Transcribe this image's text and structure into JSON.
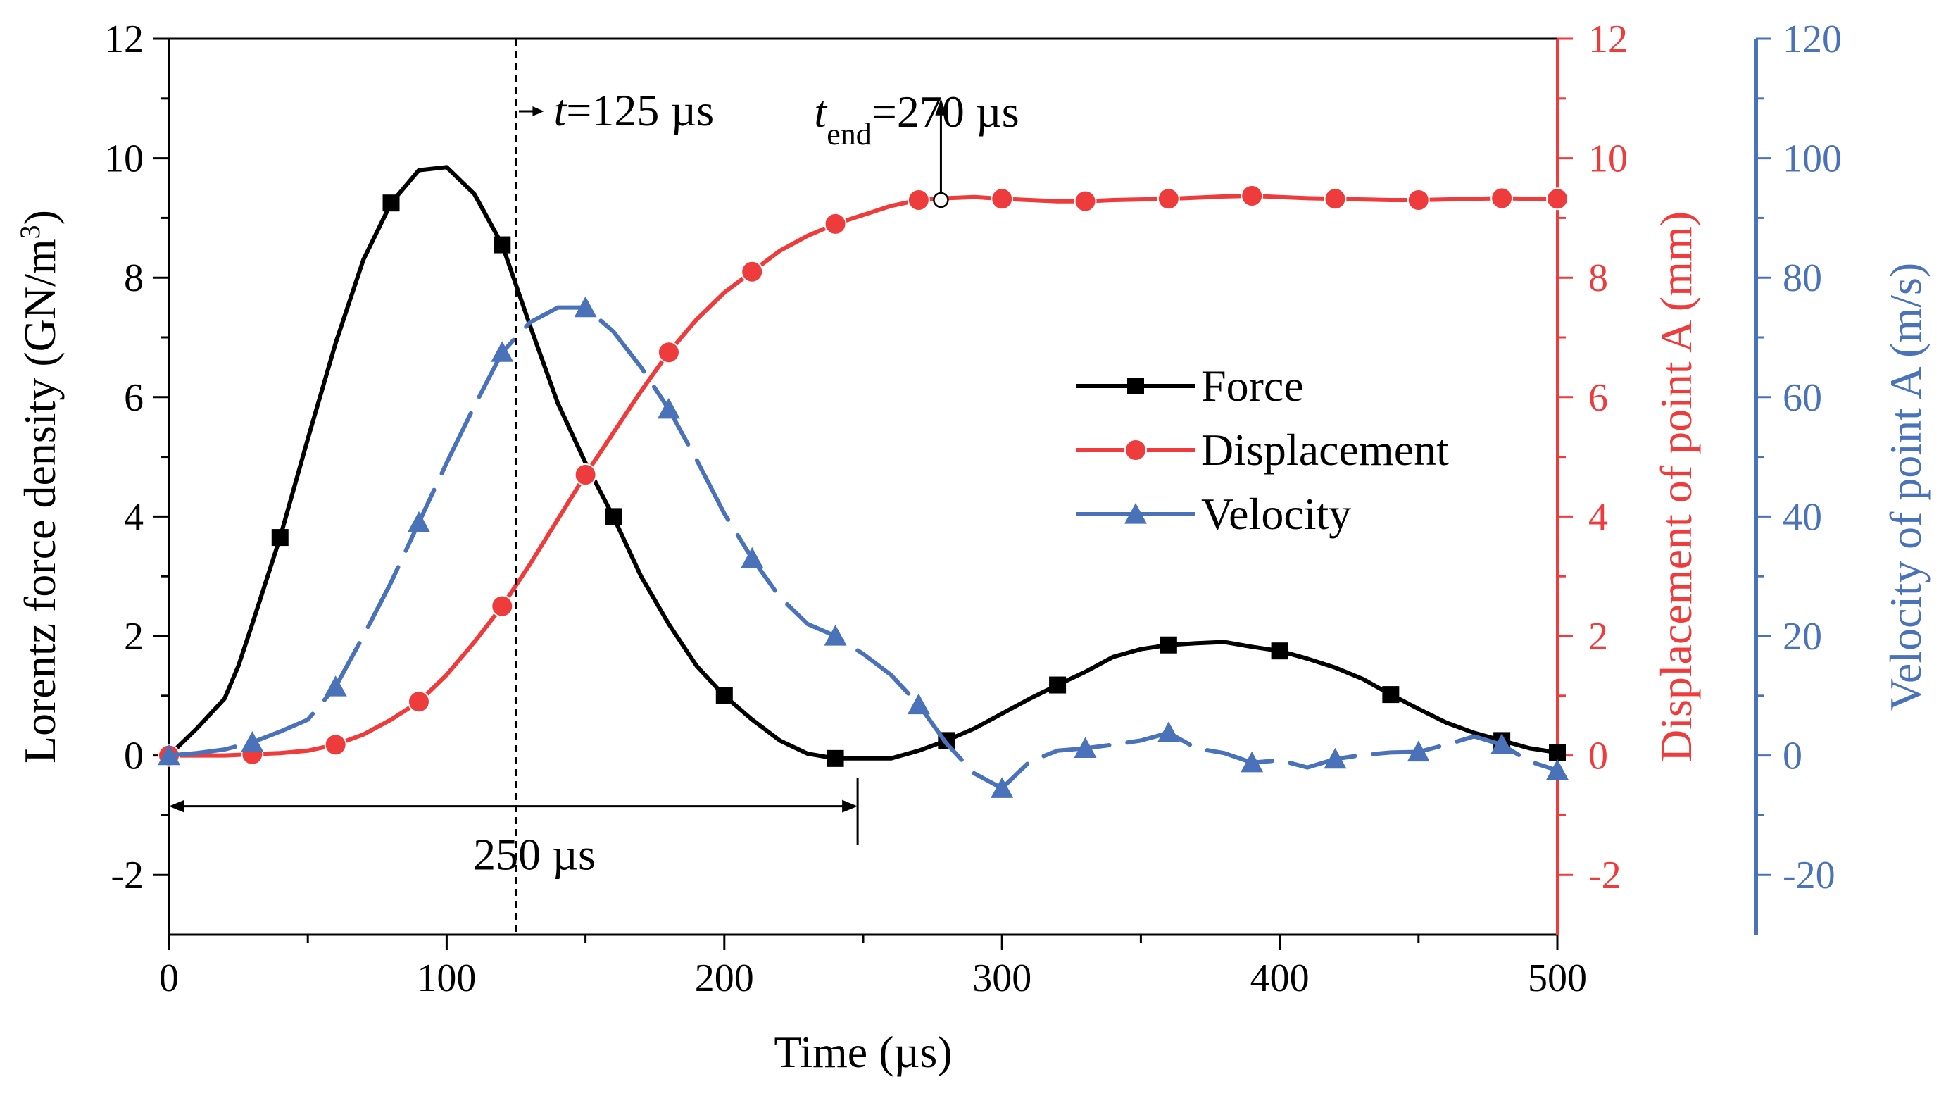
{
  "chart_data": {
    "type": "line",
    "xlabel": "Time (µs)",
    "xlim": [
      0,
      500
    ],
    "x_ticks": [
      "0",
      "100",
      "200",
      "300",
      "400",
      "500"
    ],
    "y_axes": {
      "left": {
        "label_main": "Lorentz force density (GN/m",
        "label_sup": "3",
        "label_end": ")",
        "ylim": [
          -3,
          12
        ],
        "ticks": [
          "-2",
          "0",
          "2",
          "4",
          "6",
          "8",
          "10",
          "12"
        ],
        "color": "#000000"
      },
      "right1": {
        "label": "Displacement of point A (mm)",
        "ylim": [
          -3,
          12
        ],
        "ticks": [
          "-2",
          "0",
          "2",
          "4",
          "6",
          "8",
          "10",
          "12"
        ],
        "color": "#ee3b3b"
      },
      "right2": {
        "label": "Velocity of point A (m/s)",
        "ylim": [
          -30,
          120
        ],
        "ticks": [
          "-20",
          "0",
          "20",
          "40",
          "60",
          "80",
          "100",
          "120"
        ],
        "color": "#4a72b8"
      }
    },
    "series": [
      {
        "name": "Force",
        "axis": "left",
        "color": "#000000",
        "marker": "square",
        "line": "solid",
        "x": [
          0,
          10,
          20,
          25,
          30,
          40,
          50,
          60,
          70,
          80,
          90,
          100,
          110,
          120,
          130,
          140,
          150,
          160,
          170,
          180,
          190,
          200,
          210,
          220,
          230,
          240,
          250,
          260,
          270,
          280,
          290,
          300,
          310,
          320,
          330,
          340,
          350,
          360,
          370,
          380,
          390,
          400,
          410,
          420,
          430,
          440,
          450,
          460,
          470,
          480,
          490,
          500
        ],
        "y": [
          0.0,
          0.45,
          0.95,
          1.5,
          2.2,
          3.65,
          5.3,
          6.9,
          8.3,
          9.25,
          9.8,
          9.85,
          9.4,
          8.55,
          7.2,
          5.9,
          4.9,
          4.0,
          3.0,
          2.2,
          1.5,
          1.0,
          0.6,
          0.25,
          0.03,
          -0.05,
          -0.05,
          -0.05,
          0.08,
          0.25,
          0.45,
          0.7,
          0.95,
          1.18,
          1.4,
          1.65,
          1.78,
          1.85,
          1.88,
          1.9,
          1.82,
          1.75,
          1.62,
          1.47,
          1.28,
          1.02,
          0.78,
          0.55,
          0.38,
          0.25,
          0.12,
          0.05
        ],
        "marker_x": [
          0,
          40,
          80,
          120,
          160,
          200,
          240,
          280,
          320,
          360,
          400,
          440,
          480,
          500
        ],
        "marker_y": [
          0.0,
          3.65,
          9.25,
          8.55,
          4.0,
          1.0,
          -0.05,
          0.25,
          1.18,
          1.85,
          1.75,
          1.02,
          0.25,
          0.05
        ]
      },
      {
        "name": "Displacement",
        "axis": "right1",
        "color": "#ee3b3b",
        "marker": "circle",
        "line": "solid",
        "x": [
          0,
          10,
          20,
          30,
          40,
          50,
          60,
          70,
          80,
          90,
          100,
          110,
          120,
          130,
          140,
          150,
          160,
          170,
          180,
          190,
          200,
          210,
          220,
          230,
          240,
          250,
          260,
          270,
          280,
          290,
          300,
          310,
          320,
          330,
          340,
          350,
          360,
          370,
          380,
          390,
          400,
          410,
          420,
          430,
          440,
          450,
          460,
          470,
          480,
          490,
          500
        ],
        "y": [
          0.0,
          0.0,
          0.0,
          0.02,
          0.04,
          0.08,
          0.18,
          0.35,
          0.6,
          0.9,
          1.35,
          1.9,
          2.5,
          3.2,
          3.95,
          4.7,
          5.4,
          6.1,
          6.75,
          7.3,
          7.75,
          8.1,
          8.45,
          8.7,
          8.9,
          9.05,
          9.2,
          9.3,
          9.33,
          9.35,
          9.32,
          9.3,
          9.28,
          9.28,
          9.3,
          9.31,
          9.32,
          9.34,
          9.36,
          9.37,
          9.35,
          9.33,
          9.32,
          9.31,
          9.3,
          9.3,
          9.31,
          9.32,
          9.33,
          9.32,
          9.32
        ],
        "marker_x": [
          0,
          30,
          60,
          90,
          120,
          150,
          180,
          210,
          240,
          270,
          300,
          330,
          360,
          390,
          420,
          450,
          480,
          500
        ],
        "marker_y": [
          0.0,
          0.02,
          0.18,
          0.9,
          2.5,
          4.7,
          6.75,
          8.1,
          8.9,
          9.3,
          9.32,
          9.28,
          9.32,
          9.37,
          9.32,
          9.3,
          9.33,
          9.32
        ]
      },
      {
        "name": "Velocity",
        "axis": "right2",
        "color": "#4a72b8",
        "marker": "triangle",
        "line": "dashed",
        "x": [
          0,
          10,
          20,
          30,
          40,
          50,
          60,
          70,
          80,
          90,
          100,
          110,
          120,
          130,
          140,
          150,
          160,
          170,
          180,
          190,
          200,
          210,
          220,
          230,
          240,
          250,
          260,
          270,
          280,
          290,
          300,
          310,
          320,
          330,
          340,
          350,
          360,
          370,
          380,
          390,
          400,
          410,
          420,
          430,
          440,
          450,
          460,
          470,
          480,
          490,
          500
        ],
        "y": [
          0.0,
          0.4,
          1.0,
          2.2,
          4.0,
          6.0,
          11.5,
          20.0,
          29.0,
          39.0,
          49.0,
          58.5,
          67.5,
          72.5,
          75.0,
          75.0,
          71.0,
          65.0,
          58.0,
          49.5,
          40.5,
          33.0,
          26.5,
          22.0,
          20.0,
          17.0,
          13.5,
          8.5,
          2.0,
          -3.0,
          -5.5,
          -1.0,
          0.8,
          1.2,
          1.8,
          2.5,
          3.8,
          1.2,
          0.4,
          -1.2,
          -0.8,
          -2.0,
          -0.6,
          0.1,
          0.5,
          0.6,
          1.8,
          3.2,
          1.8,
          -1.0,
          -2.5
        ],
        "marker_x": [
          0,
          30,
          60,
          90,
          120,
          150,
          180,
          210,
          240,
          270,
          300,
          330,
          360,
          390,
          420,
          450,
          480,
          500
        ],
        "marker_y": [
          0.0,
          2.2,
          11.5,
          39.0,
          67.5,
          75.0,
          58.0,
          33.0,
          20.0,
          8.5,
          -5.5,
          1.2,
          3.8,
          -1.2,
          -0.6,
          0.6,
          1.8,
          -2.5
        ]
      }
    ],
    "legend": {
      "placement": "center-right",
      "entries": [
        "Force",
        "Displacement",
        "Velocity"
      ]
    },
    "annotations": {
      "t_marker": {
        "label_var": "t",
        "label_rest": "=125 µs",
        "x": 125,
        "arrow_to": 135
      },
      "t_end": {
        "label_var": "t",
        "label_sub": "end",
        "label_rest": "=270 µs",
        "x": 278,
        "y_point": 9.3,
        "y_arrow_tip": 11.0
      },
      "span": {
        "label": "250 µs",
        "x_start": 0,
        "x_end": 248,
        "y": -0.85,
        "end_tick_x": 248
      }
    }
  }
}
